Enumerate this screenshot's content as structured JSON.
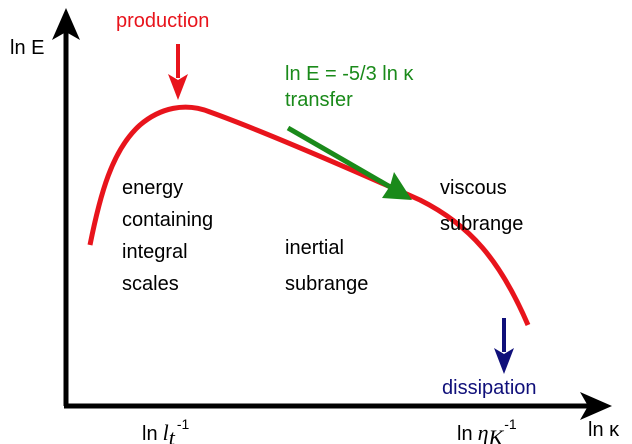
{
  "axes": {
    "y_label": "ln E",
    "x_label": "ln κ"
  },
  "annotations": {
    "production": "production",
    "law": "ln E = -5/3 ln κ",
    "transfer": "transfer",
    "dissipation": "dissipation"
  },
  "regions": [
    {
      "lines": [
        "energy",
        "containing",
        "integral",
        "scales"
      ]
    },
    {
      "lines": [
        "inertial",
        "subrange"
      ]
    },
    {
      "lines": [
        "viscous",
        "subrange"
      ]
    }
  ],
  "ticks": [
    {
      "prefix": "ln",
      "symbol": "l",
      "subscript": "t",
      "superscript": "-1"
    },
    {
      "prefix": "ln",
      "symbol": "η",
      "subscript": "K",
      "superscript": "-1"
    }
  ]
}
